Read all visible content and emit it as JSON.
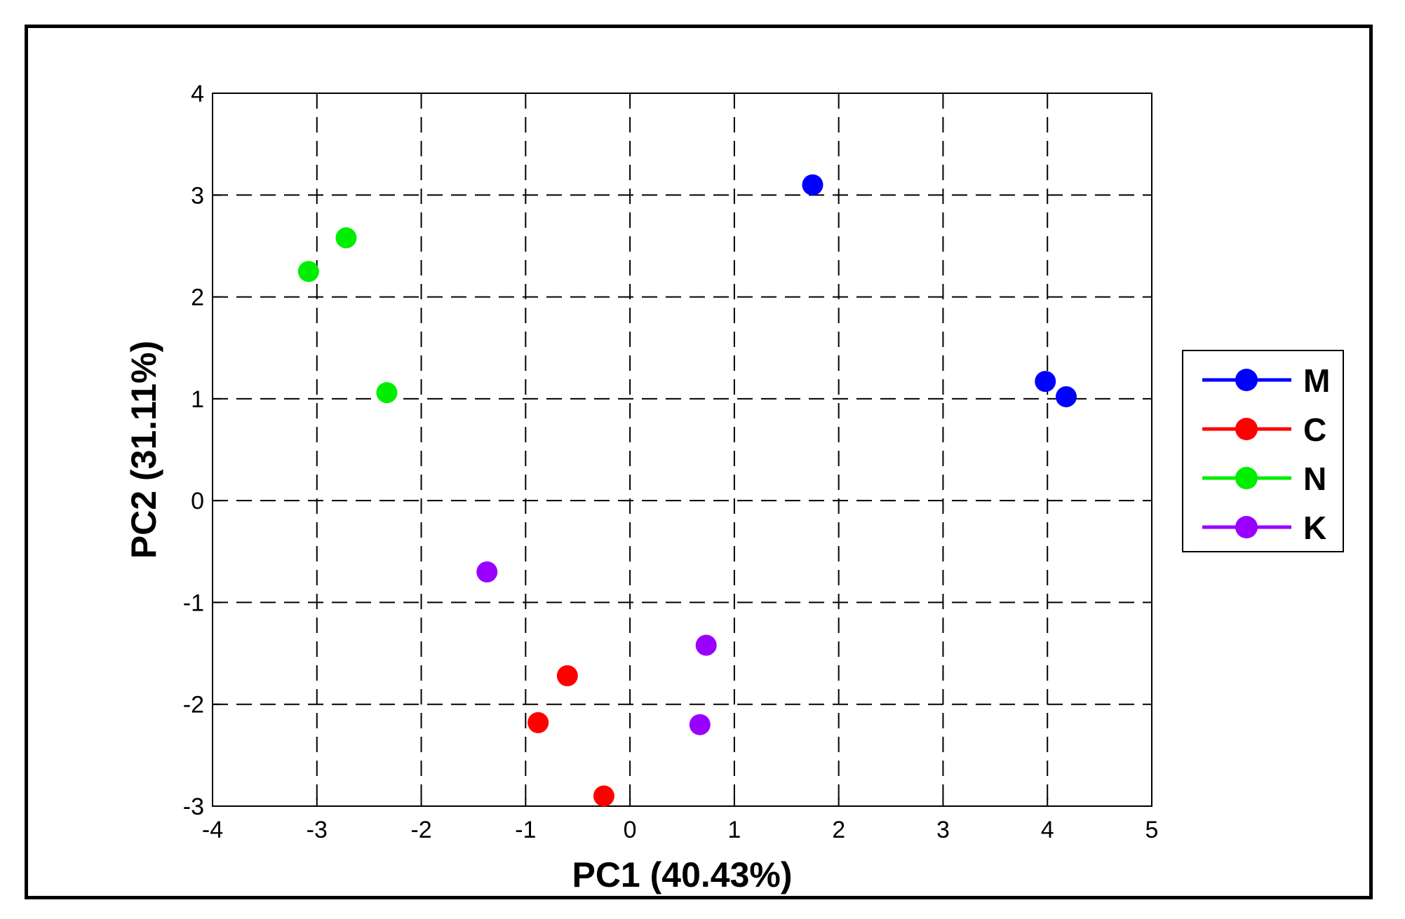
{
  "chart_data": {
    "type": "scatter",
    "title": "",
    "xlabel": "PC1 (40.43%)",
    "ylabel": "PC2 (31.11%)",
    "xlim": [
      -4,
      5
    ],
    "ylim": [
      -3,
      4
    ],
    "xticks": [
      "-4",
      "-3",
      "-2",
      "-1",
      "0",
      "1",
      "2",
      "3",
      "4",
      "5"
    ],
    "yticks": [
      "-3",
      "-2",
      "-1",
      "0",
      "1",
      "2",
      "3",
      "4"
    ],
    "grid": "dashed",
    "legend_position": "right",
    "series": [
      {
        "name": "M",
        "color": "#0000ff",
        "points": [
          [
            1.75,
            3.1
          ],
          [
            3.98,
            1.17
          ],
          [
            4.18,
            1.02
          ]
        ]
      },
      {
        "name": "C",
        "color": "#ff0000",
        "points": [
          [
            -0.88,
            -2.18
          ],
          [
            -0.6,
            -1.72
          ],
          [
            -0.25,
            -2.9
          ]
        ]
      },
      {
        "name": "N",
        "color": "#00ee00",
        "points": [
          [
            -3.08,
            2.25
          ],
          [
            -2.72,
            2.58
          ],
          [
            -2.33,
            1.06
          ]
        ]
      },
      {
        "name": "K",
        "color": "#9900ff",
        "points": [
          [
            -1.37,
            -0.7
          ],
          [
            0.73,
            -1.42
          ],
          [
            0.67,
            -2.2
          ]
        ]
      }
    ]
  }
}
